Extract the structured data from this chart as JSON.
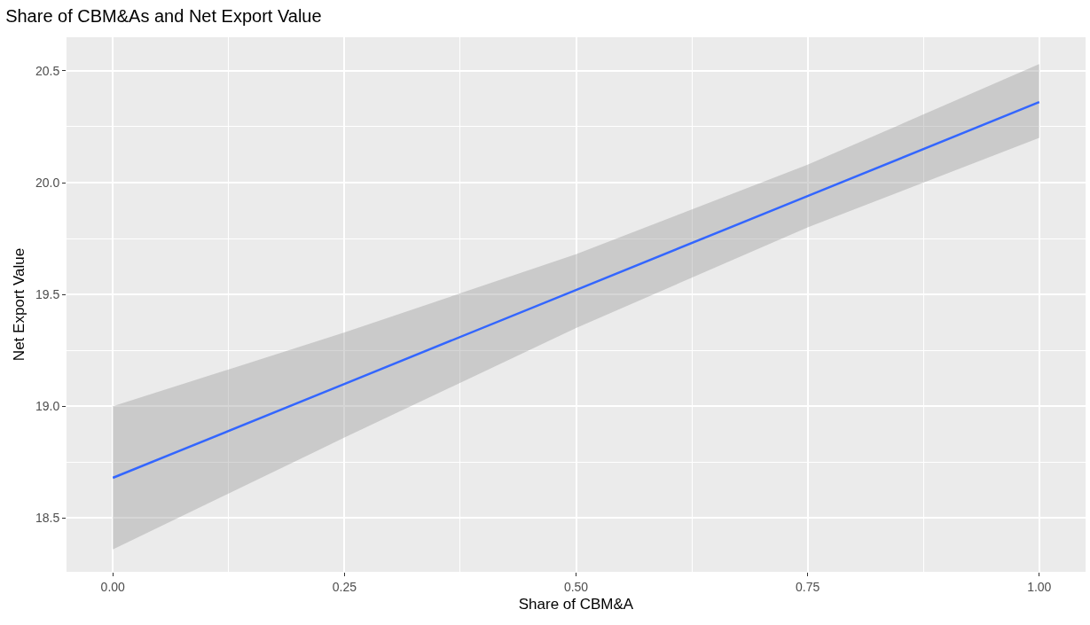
{
  "chart_data": {
    "type": "line",
    "title": "Share of CBM&As and Net Export Value",
    "xlabel": "Share of CBM&A",
    "ylabel": "Net Export Value",
    "x": [
      0,
      0.25,
      0.5,
      0.75,
      1
    ],
    "series": [
      {
        "color": "#3366ff",
        "values": [
          18.68,
          19.1,
          19.52,
          19.94,
          20.36
        ],
        "lower": [
          18.36,
          18.86,
          19.35,
          19.8,
          20.2
        ],
        "upper": [
          19.0,
          19.33,
          19.68,
          20.08,
          20.53
        ]
      }
    ],
    "xlim": [
      -0.05,
      1.05
    ],
    "ylim": [
      18.26,
      20.65
    ],
    "xticks": [
      {
        "value": 0,
        "label": "0.00"
      },
      {
        "value": 0.25,
        "label": "0.25"
      },
      {
        "value": 0.5,
        "label": "0.50"
      },
      {
        "value": 0.75,
        "label": "0.75"
      },
      {
        "value": 1,
        "label": "1.00"
      }
    ],
    "yticks": [
      {
        "value": 18.5,
        "label": "18.5"
      },
      {
        "value": 19,
        "label": "19.0"
      },
      {
        "value": 19.5,
        "label": "19.5"
      },
      {
        "value": 20,
        "label": "20.0"
      },
      {
        "value": 20.5,
        "label": "20.5"
      }
    ],
    "grid": true
  }
}
